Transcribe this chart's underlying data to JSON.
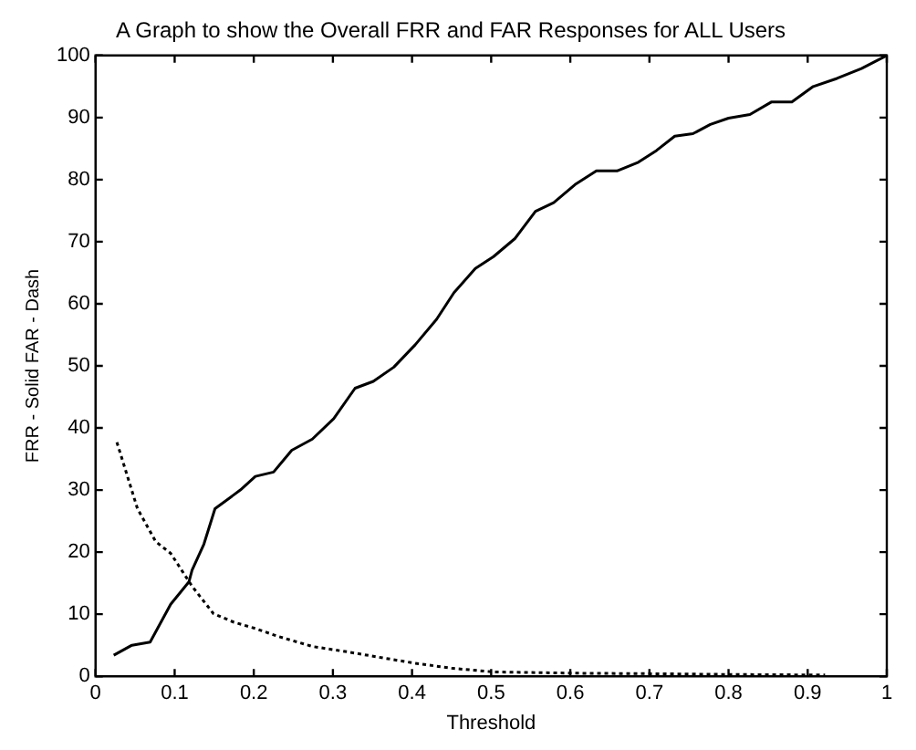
{
  "chart_data": {
    "type": "line",
    "title": "A Graph to show the Overall FRR and FAR Responses for ALL Users",
    "xlabel": "Threshold",
    "ylabel": "FRR - Solid FAR - Dash",
    "xlim": [
      0,
      1
    ],
    "xticks": [
      0,
      0.1,
      0.2,
      0.3,
      0.4,
      0.5,
      0.6,
      0.7,
      0.8,
      0.9,
      1
    ],
    "ylim": [
      0,
      100
    ],
    "yticks": [
      0,
      10,
      20,
      30,
      40,
      50,
      60,
      70,
      80,
      90,
      100
    ],
    "grid": false,
    "legend": false,
    "marker": "none",
    "series": [
      {
        "color": "#000000",
        "line_style": "solid",
        "x": [
          0.023,
          0.046,
          0.069,
          0.095,
          0.118,
          0.122,
          0.137,
          0.151,
          0.183,
          0.202,
          0.225,
          0.248,
          0.274,
          0.301,
          0.328,
          0.351,
          0.377,
          0.404,
          0.431,
          0.453,
          0.48,
          0.503,
          0.53,
          0.556,
          0.579,
          0.606,
          0.633,
          0.659,
          0.686,
          0.709,
          0.732,
          0.755,
          0.777,
          0.8,
          0.827,
          0.854,
          0.88,
          0.907,
          0.937,
          0.968,
          1
        ],
        "values": [
          3.4,
          5,
          5.5,
          11.6,
          15.2,
          17.1,
          21.3,
          27,
          30,
          32.2,
          32.9,
          36.4,
          38.2,
          41.5,
          46.4,
          47.5,
          49.8,
          53.4,
          57.5,
          61.8,
          65.7,
          67.6,
          70.5,
          74.9,
          76.3,
          79.2,
          81.4,
          81.4,
          82.8,
          84.7,
          87,
          87.4,
          88.9,
          89.9,
          90.5,
          92.5,
          92.5,
          95,
          96.3,
          97.9,
          100
        ]
      },
      {
        "color": "#000000",
        "line_style": "dotted",
        "x": [
          0.027,
          0.053,
          0.076,
          0.095,
          0.122,
          0.149,
          0.175,
          0.202,
          0.229,
          0.274,
          0.32,
          0.366,
          0.404,
          0.45,
          0.503,
          0.602,
          0.716,
          0.79,
          0.922
        ],
        "values": [
          37.7,
          27,
          21.7,
          19.8,
          14.5,
          10.1,
          8.7,
          7.7,
          6.5,
          4.8,
          3.9,
          2.9,
          2.1,
          1.3,
          0.7,
          0.5,
          0.4,
          0.3,
          0.2
        ]
      }
    ]
  }
}
